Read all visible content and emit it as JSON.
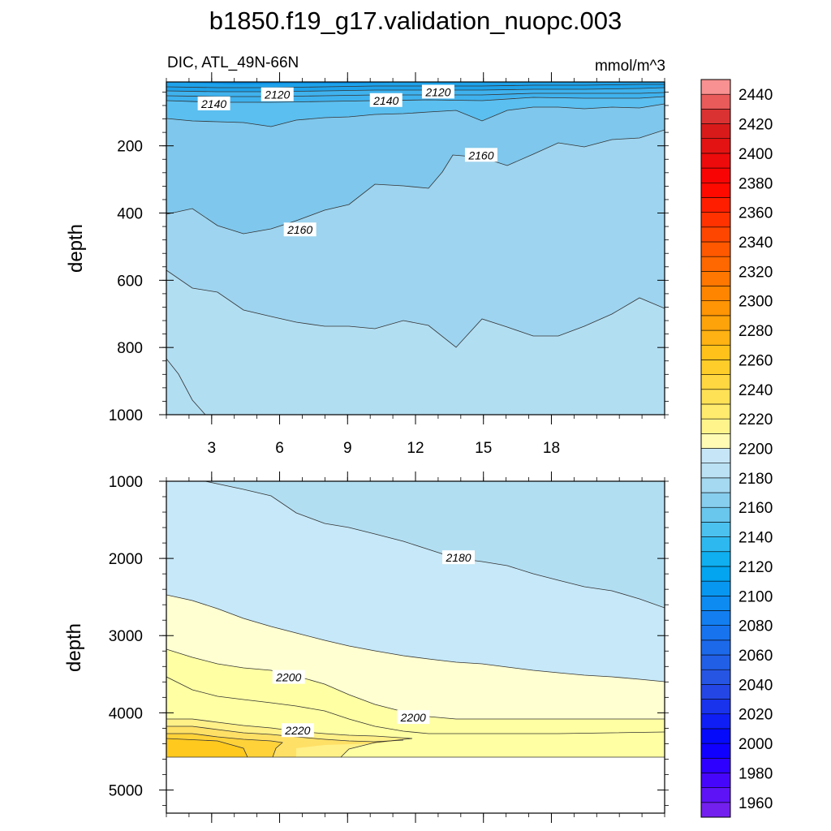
{
  "chart_data": {
    "type": "contour",
    "title": "b1850.f19_g17.validation_nuopc.003",
    "upper_panel": {
      "left_string": "DIC, ATL_49N-66N",
      "right_string": "mmol/m^3",
      "ylabel": "depth",
      "ylim": [
        1000,
        10
      ],
      "yticks": [
        200,
        400,
        600,
        800,
        1000
      ],
      "xlim": [
        1,
        23
      ],
      "xticks": [
        3,
        6,
        9,
        12,
        15,
        18
      ],
      "contour_labels": [
        {
          "text": "2140",
          "x": 3.1,
          "y": 75
        },
        {
          "text": "2120",
          "x": 5.9,
          "y": 48
        },
        {
          "text": "2140",
          "x": 10.7,
          "y": 65
        },
        {
          "text": "2120",
          "x": 13.0,
          "y": 40
        },
        {
          "text": "2160",
          "x": 14.9,
          "y": 228
        },
        {
          "text": "2160",
          "x": 6.9,
          "y": 450
        }
      ]
    },
    "lower_panel": {
      "ylabel": "depth",
      "ylim": [
        5300,
        1000
      ],
      "yticks": [
        1000,
        2000,
        3000,
        4000,
        5000
      ],
      "xlim": [
        1,
        23
      ],
      "contour_labels": [
        {
          "text": "2180",
          "x": 13.9,
          "y": 1990
        },
        {
          "text": "2200",
          "x": 6.4,
          "y": 3540
        },
        {
          "text": "2200",
          "x": 11.9,
          "y": 4060
        },
        {
          "text": "2220",
          "x": 6.8,
          "y": 4230
        }
      ]
    },
    "colorbar": {
      "labels": [
        "2440",
        "2420",
        "2400",
        "2380",
        "2360",
        "2340",
        "2320",
        "2300",
        "2280",
        "2260",
        "2240",
        "2220",
        "2200",
        "2180",
        "2160",
        "2140",
        "2120",
        "2100",
        "2080",
        "2060",
        "2040",
        "2020",
        "2000",
        "1980",
        "1960"
      ],
      "min": 1950,
      "max": 2450,
      "interval": 10
    }
  }
}
